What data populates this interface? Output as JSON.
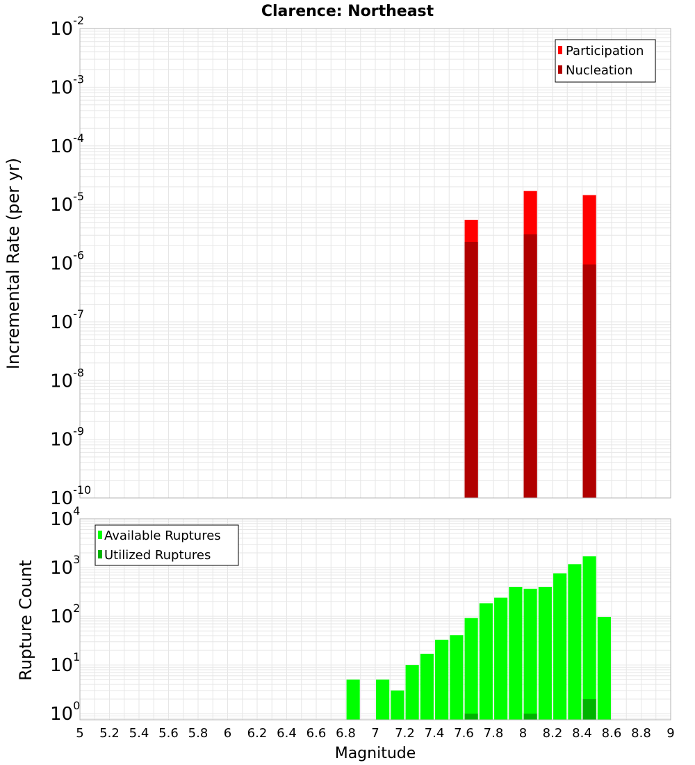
{
  "chart_data": [
    {
      "type": "bar",
      "title": "Clarence: Northeast",
      "xlabel": "",
      "ylabel": "Incremental Rate (per yr)",
      "yscale": "log",
      "ylim": [
        1e-10,
        0.01
      ],
      "xlim": [
        5,
        9
      ],
      "grid": true,
      "legend_position": "top-right",
      "bin_width": 0.1,
      "series": [
        {
          "name": "Participation",
          "color": "#ff0000",
          "x": [
            7.65,
            8.05,
            8.45
          ],
          "values": [
            5.5e-06,
            1.7e-05,
            1.45e-05
          ]
        },
        {
          "name": "Nucleation",
          "color": "#b00000",
          "x": [
            7.65,
            8.05,
            8.45
          ],
          "values": [
            2.3e-06,
            3.1e-06,
            9.5e-07
          ]
        }
      ],
      "y_ticks": [
        {
          "base": "10",
          "exp": "-10"
        },
        {
          "base": "10",
          "exp": "-9"
        },
        {
          "base": "10",
          "exp": "-8"
        },
        {
          "base": "10",
          "exp": "-7"
        },
        {
          "base": "10",
          "exp": "-6"
        },
        {
          "base": "10",
          "exp": "-5"
        },
        {
          "base": "10",
          "exp": "-4"
        },
        {
          "base": "10",
          "exp": "-3"
        },
        {
          "base": "10",
          "exp": "-2"
        }
      ]
    },
    {
      "type": "bar",
      "title": "",
      "xlabel": "Magnitude",
      "ylabel": "Rupture Count",
      "yscale": "log",
      "ylim": [
        0.75,
        10000
      ],
      "xlim": [
        5,
        9
      ],
      "grid": true,
      "legend_position": "top-left",
      "bin_width": 0.1,
      "series": [
        {
          "name": "Available Ruptures",
          "color": "#00ff00",
          "x": [
            6.85,
            7.05,
            7.15,
            7.25,
            7.35,
            7.45,
            7.55,
            7.65,
            7.75,
            7.85,
            7.95,
            8.05,
            8.15,
            8.25,
            8.35,
            8.45,
            8.55
          ],
          "values": [
            5,
            5,
            3,
            10,
            17,
            33,
            41,
            92,
            185,
            240,
            400,
            365,
            400,
            760,
            1170,
            1700,
            97
          ]
        },
        {
          "name": "Utilized Ruptures",
          "color": "#00b300",
          "x": [
            7.65,
            8.05,
            8.45
          ],
          "values": [
            1,
            1,
            2
          ]
        }
      ],
      "y_ticks": [
        {
          "base": "10",
          "exp": "0"
        },
        {
          "base": "10",
          "exp": "1"
        },
        {
          "base": "10",
          "exp": "2"
        },
        {
          "base": "10",
          "exp": "3"
        },
        {
          "base": "10",
          "exp": "4"
        }
      ],
      "x_ticks": [
        "5",
        "5.2",
        "5.4",
        "5.6",
        "5.8",
        "6",
        "6.2",
        "6.4",
        "6.6",
        "6.8",
        "7",
        "7.2",
        "7.4",
        "7.6",
        "7.8",
        "8",
        "8.2",
        "8.4",
        "8.6",
        "8.8",
        "9"
      ]
    }
  ]
}
